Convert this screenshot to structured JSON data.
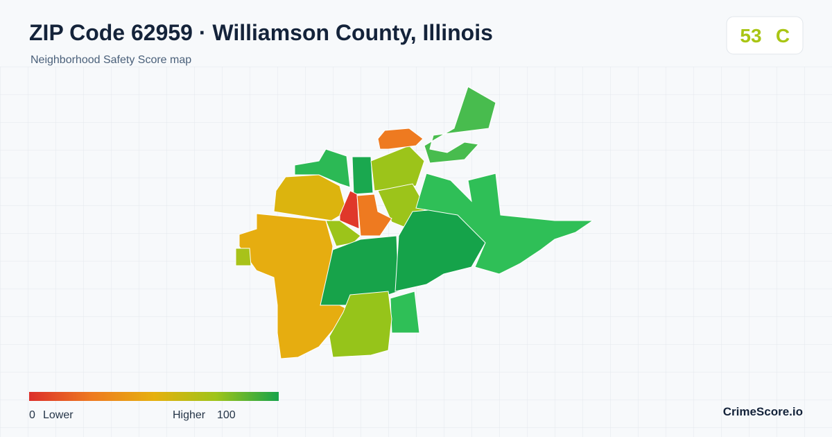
{
  "header": {
    "title": "ZIP Code 62959 · Williamson County, Illinois",
    "subtitle": "Neighborhood Safety Score map"
  },
  "score": {
    "value": 53,
    "grade": "C"
  },
  "legend": {
    "min": 0,
    "min_label": "Lower",
    "max_label": "Higher",
    "max": 100
  },
  "brand": "CrimeScore.io"
}
